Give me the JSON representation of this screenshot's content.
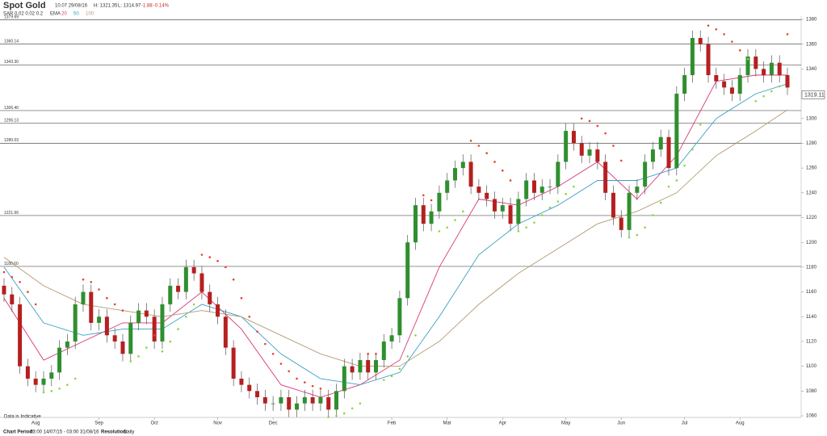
{
  "chart_data": {
    "type": "candlestick",
    "title": "Spot Gold",
    "quote": "10.07 29/08/16",
    "high_text": "H: 1321.35",
    "low_text": "L: 1314.97",
    "change": "-1.88",
    "change_pct": "-0.14%",
    "sar_label": "SAR",
    "sar_params": "0.02 0.02 0.2",
    "ema_label": "EMA",
    "footer_period_label": "Chart Period:",
    "footer_period": "03:00 14/07/15 - 03:00 31/08/16",
    "footer_res_label": "Resolution:",
    "footer_res": "Daily",
    "note": "Data is Indicative",
    "last": 1319.11,
    "ylim": [
      1060,
      1380
    ],
    "yticks": [
      1060,
      1080,
      1100,
      1120,
      1140,
      1160,
      1180,
      1200,
      1220,
      1240,
      1260,
      1280,
      1300,
      1320,
      1340,
      1360,
      1380
    ],
    "xlim": [
      0,
      99
    ],
    "xticks": [
      {
        "value": 4,
        "label": "Aug"
      },
      {
        "value": 12,
        "label": "Sep"
      },
      {
        "value": 19,
        "label": "Oct"
      },
      {
        "value": 27,
        "label": "Nov"
      },
      {
        "value": 34,
        "label": "Dec"
      },
      {
        "value": 49,
        "label": "Feb"
      },
      {
        "value": 56,
        "label": "Mar"
      },
      {
        "value": 63,
        "label": "Apr"
      },
      {
        "value": 71,
        "label": "May"
      },
      {
        "value": 78,
        "label": "Jun"
      },
      {
        "value": 86,
        "label": "Jul"
      },
      {
        "value": 93,
        "label": "Aug"
      }
    ],
    "levels": [
      {
        "value": 1379.69,
        "label": "1379.69"
      },
      1360.14,
      {
        "value": 1343.3,
        "label": "1343.30"
      },
      {
        "value": 1306.4,
        "label": "1306.40"
      },
      1296.13,
      1280.03,
      1221.66,
      {
        "value": 1180.6,
        "label": "1180.60"
      }
    ],
    "up_color": "#2f8f2f",
    "down_color": "#b52020",
    "sar_up_color": "#86d93a",
    "sar_down_color": "#e8412c",
    "candles": [
      [
        1165,
        1171,
        1152,
        1158
      ],
      [
        1158,
        1164,
        1144,
        1150
      ],
      [
        1150,
        1156,
        1094,
        1100
      ],
      [
        1100,
        1106,
        1084,
        1090
      ],
      [
        1090,
        1096,
        1079,
        1085
      ],
      [
        1085,
        1096,
        1079,
        1090
      ],
      [
        1090,
        1101,
        1084,
        1095
      ],
      [
        1095,
        1121,
        1089,
        1115
      ],
      [
        1115,
        1126,
        1109,
        1120
      ],
      [
        1120,
        1156,
        1114,
        1150
      ],
      [
        1150,
        1166,
        1144,
        1160
      ],
      [
        1160,
        1166,
        1129,
        1135
      ],
      [
        1135,
        1146,
        1129,
        1140
      ],
      [
        1140,
        1146,
        1119,
        1125
      ],
      [
        1125,
        1131,
        1114,
        1120
      ],
      [
        1120,
        1126,
        1104,
        1110
      ],
      [
        1110,
        1141,
        1104,
        1135
      ],
      [
        1135,
        1151,
        1129,
        1145
      ],
      [
        1145,
        1151,
        1134,
        1140
      ],
      [
        1140,
        1146,
        1114,
        1120
      ],
      [
        1120,
        1156,
        1114,
        1150
      ],
      [
        1150,
        1171,
        1144,
        1165
      ],
      [
        1165,
        1171,
        1154,
        1160
      ],
      [
        1160,
        1186,
        1154,
        1180
      ],
      [
        1180,
        1186,
        1169,
        1175
      ],
      [
        1175,
        1181,
        1154,
        1160
      ],
      [
        1160,
        1166,
        1144,
        1150
      ],
      [
        1150,
        1156,
        1134,
        1140
      ],
      [
        1140,
        1146,
        1109,
        1115
      ],
      [
        1115,
        1121,
        1084,
        1090
      ],
      [
        1090,
        1096,
        1079,
        1085
      ],
      [
        1085,
        1091,
        1074,
        1080
      ],
      [
        1080,
        1086,
        1069,
        1075
      ],
      [
        1075,
        1081,
        1064,
        1070
      ],
      [
        1070,
        1076,
        1064,
        1070
      ],
      [
        1070,
        1081,
        1064,
        1075
      ],
      [
        1075,
        1081,
        1059,
        1065
      ],
      [
        1065,
        1076,
        1059,
        1070
      ],
      [
        1070,
        1081,
        1064,
        1075
      ],
      [
        1075,
        1081,
        1064,
        1070
      ],
      [
        1070,
        1081,
        1064,
        1075
      ],
      [
        1075,
        1081,
        1059,
        1065
      ],
      [
        1065,
        1086,
        1059,
        1080
      ],
      [
        1080,
        1106,
        1074,
        1100
      ],
      [
        1100,
        1106,
        1089,
        1095
      ],
      [
        1095,
        1111,
        1089,
        1105
      ],
      [
        1105,
        1111,
        1089,
        1095
      ],
      [
        1095,
        1111,
        1089,
        1105
      ],
      [
        1105,
        1126,
        1099,
        1120
      ],
      [
        1120,
        1131,
        1114,
        1125
      ],
      [
        1125,
        1161,
        1119,
        1155
      ],
      [
        1155,
        1206,
        1149,
        1200
      ],
      [
        1200,
        1236,
        1194,
        1230
      ],
      [
        1230,
        1236,
        1209,
        1215
      ],
      [
        1215,
        1231,
        1209,
        1225
      ],
      [
        1225,
        1246,
        1219,
        1240
      ],
      [
        1240,
        1256,
        1234,
        1250
      ],
      [
        1250,
        1266,
        1244,
        1260
      ],
      [
        1260,
        1271,
        1254,
        1265
      ],
      [
        1265,
        1271,
        1239,
        1245
      ],
      [
        1245,
        1251,
        1234,
        1240
      ],
      [
        1240,
        1246,
        1229,
        1235
      ],
      [
        1235,
        1241,
        1219,
        1225
      ],
      [
        1225,
        1236,
        1219,
        1230
      ],
      [
        1230,
        1236,
        1209,
        1215
      ],
      [
        1215,
        1241,
        1209,
        1235
      ],
      [
        1235,
        1256,
        1229,
        1250
      ],
      [
        1250,
        1256,
        1234,
        1240
      ],
      [
        1240,
        1251,
        1234,
        1245
      ],
      [
        1245,
        1251,
        1239,
        1245
      ],
      [
        1245,
        1271,
        1239,
        1265
      ],
      [
        1265,
        1296,
        1259,
        1290
      ],
      [
        1290,
        1296,
        1274,
        1280
      ],
      [
        1280,
        1286,
        1264,
        1270
      ],
      [
        1270,
        1281,
        1264,
        1275
      ],
      [
        1275,
        1281,
        1259,
        1265
      ],
      [
        1265,
        1271,
        1234,
        1240
      ],
      [
        1240,
        1246,
        1214,
        1220
      ],
      [
        1220,
        1226,
        1204,
        1210
      ],
      [
        1210,
        1246,
        1204,
        1240
      ],
      [
        1240,
        1251,
        1234,
        1245
      ],
      [
        1245,
        1271,
        1239,
        1265
      ],
      [
        1265,
        1281,
        1259,
        1275
      ],
      [
        1275,
        1291,
        1269,
        1285
      ],
      [
        1285,
        1291,
        1254,
        1260
      ],
      [
        1260,
        1326,
        1254,
        1320
      ],
      [
        1320,
        1341,
        1314,
        1335
      ],
      [
        1335,
        1371,
        1329,
        1365
      ],
      [
        1365,
        1371,
        1354,
        1360
      ],
      [
        1360,
        1366,
        1329,
        1335
      ],
      [
        1335,
        1341,
        1324,
        1330
      ],
      [
        1330,
        1336,
        1319,
        1325
      ],
      [
        1325,
        1331,
        1314,
        1320
      ],
      [
        1320,
        1341,
        1314,
        1335
      ],
      [
        1335,
        1356,
        1329,
        1350
      ],
      [
        1350,
        1356,
        1334,
        1340
      ],
      [
        1340,
        1346,
        1329,
        1335
      ],
      [
        1335,
        1351,
        1329,
        1345
      ],
      [
        1345,
        1351,
        1329,
        1335
      ],
      [
        1335,
        1341,
        1319,
        1325
      ]
    ],
    "sar": [
      1176,
      1172,
      1168,
      1160,
      1150,
      1079,
      1080,
      1082,
      1085,
      1090,
      1170,
      1168,
      1162,
      1155,
      1150,
      1145,
      1104,
      1108,
      1115,
      1125,
      1112,
      1120,
      1130,
      1140,
      1150,
      1190,
      1188,
      1185,
      1180,
      1170,
      1155,
      1140,
      1128,
      1118,
      1110,
      1102,
      1096,
      1090,
      1087,
      1084,
      1082,
      1059,
      1060,
      1062,
      1066,
      1070,
      1110,
      1110,
      1089,
      1092,
      1098,
      1108,
      1125,
      1238,
      1234,
      1209,
      1212,
      1218,
      1225,
      1282,
      1278,
      1272,
      1265,
      1258,
      1250,
      1209,
      1212,
      1216,
      1222,
      1228,
      1233,
      1239,
      1245,
      1300,
      1298,
      1294,
      1288,
      1278,
      1266,
      1204,
      1206,
      1212,
      1222,
      1232,
      1245,
      1250,
      1262,
      1275,
      1295,
      1375,
      1372,
      1368,
      1362,
      1355,
      1348,
      1314,
      1318,
      1322,
      1326,
      1368
    ],
    "series": [
      {
        "name": "20",
        "color": "#d9367a",
        "x": [
          0,
          5,
          10,
          15,
          20,
          25,
          30,
          35,
          40,
          45,
          50,
          55,
          60,
          65,
          70,
          75,
          80,
          85,
          90,
          95,
          99
        ],
        "values": [
          1155,
          1105,
          1120,
          1135,
          1135,
          1160,
          1130,
          1085,
          1075,
          1085,
          1105,
          1180,
          1235,
          1230,
          1245,
          1265,
          1235,
          1270,
          1330,
          1335,
          1335
        ]
      },
      {
        "name": "50",
        "color": "#3a9fc4",
        "x": [
          0,
          5,
          10,
          15,
          20,
          25,
          30,
          35,
          40,
          45,
          50,
          55,
          60,
          65,
          70,
          75,
          80,
          85,
          90,
          95,
          99
        ],
        "values": [
          1180,
          1135,
          1125,
          1130,
          1130,
          1150,
          1140,
          1110,
          1090,
          1085,
          1095,
          1140,
          1190,
          1215,
          1230,
          1250,
          1250,
          1260,
          1300,
          1320,
          1328
        ]
      },
      {
        "name": "100",
        "color": "#b39a72",
        "x": [
          0,
          5,
          10,
          15,
          20,
          25,
          30,
          35,
          40,
          45,
          50,
          55,
          60,
          65,
          70,
          75,
          80,
          85,
          90,
          95,
          99
        ],
        "values": [
          1188,
          1165,
          1150,
          1145,
          1140,
          1145,
          1140,
          1125,
          1110,
          1100,
          1100,
          1120,
          1150,
          1175,
          1195,
          1215,
          1225,
          1240,
          1270,
          1290,
          1307
        ]
      }
    ]
  }
}
